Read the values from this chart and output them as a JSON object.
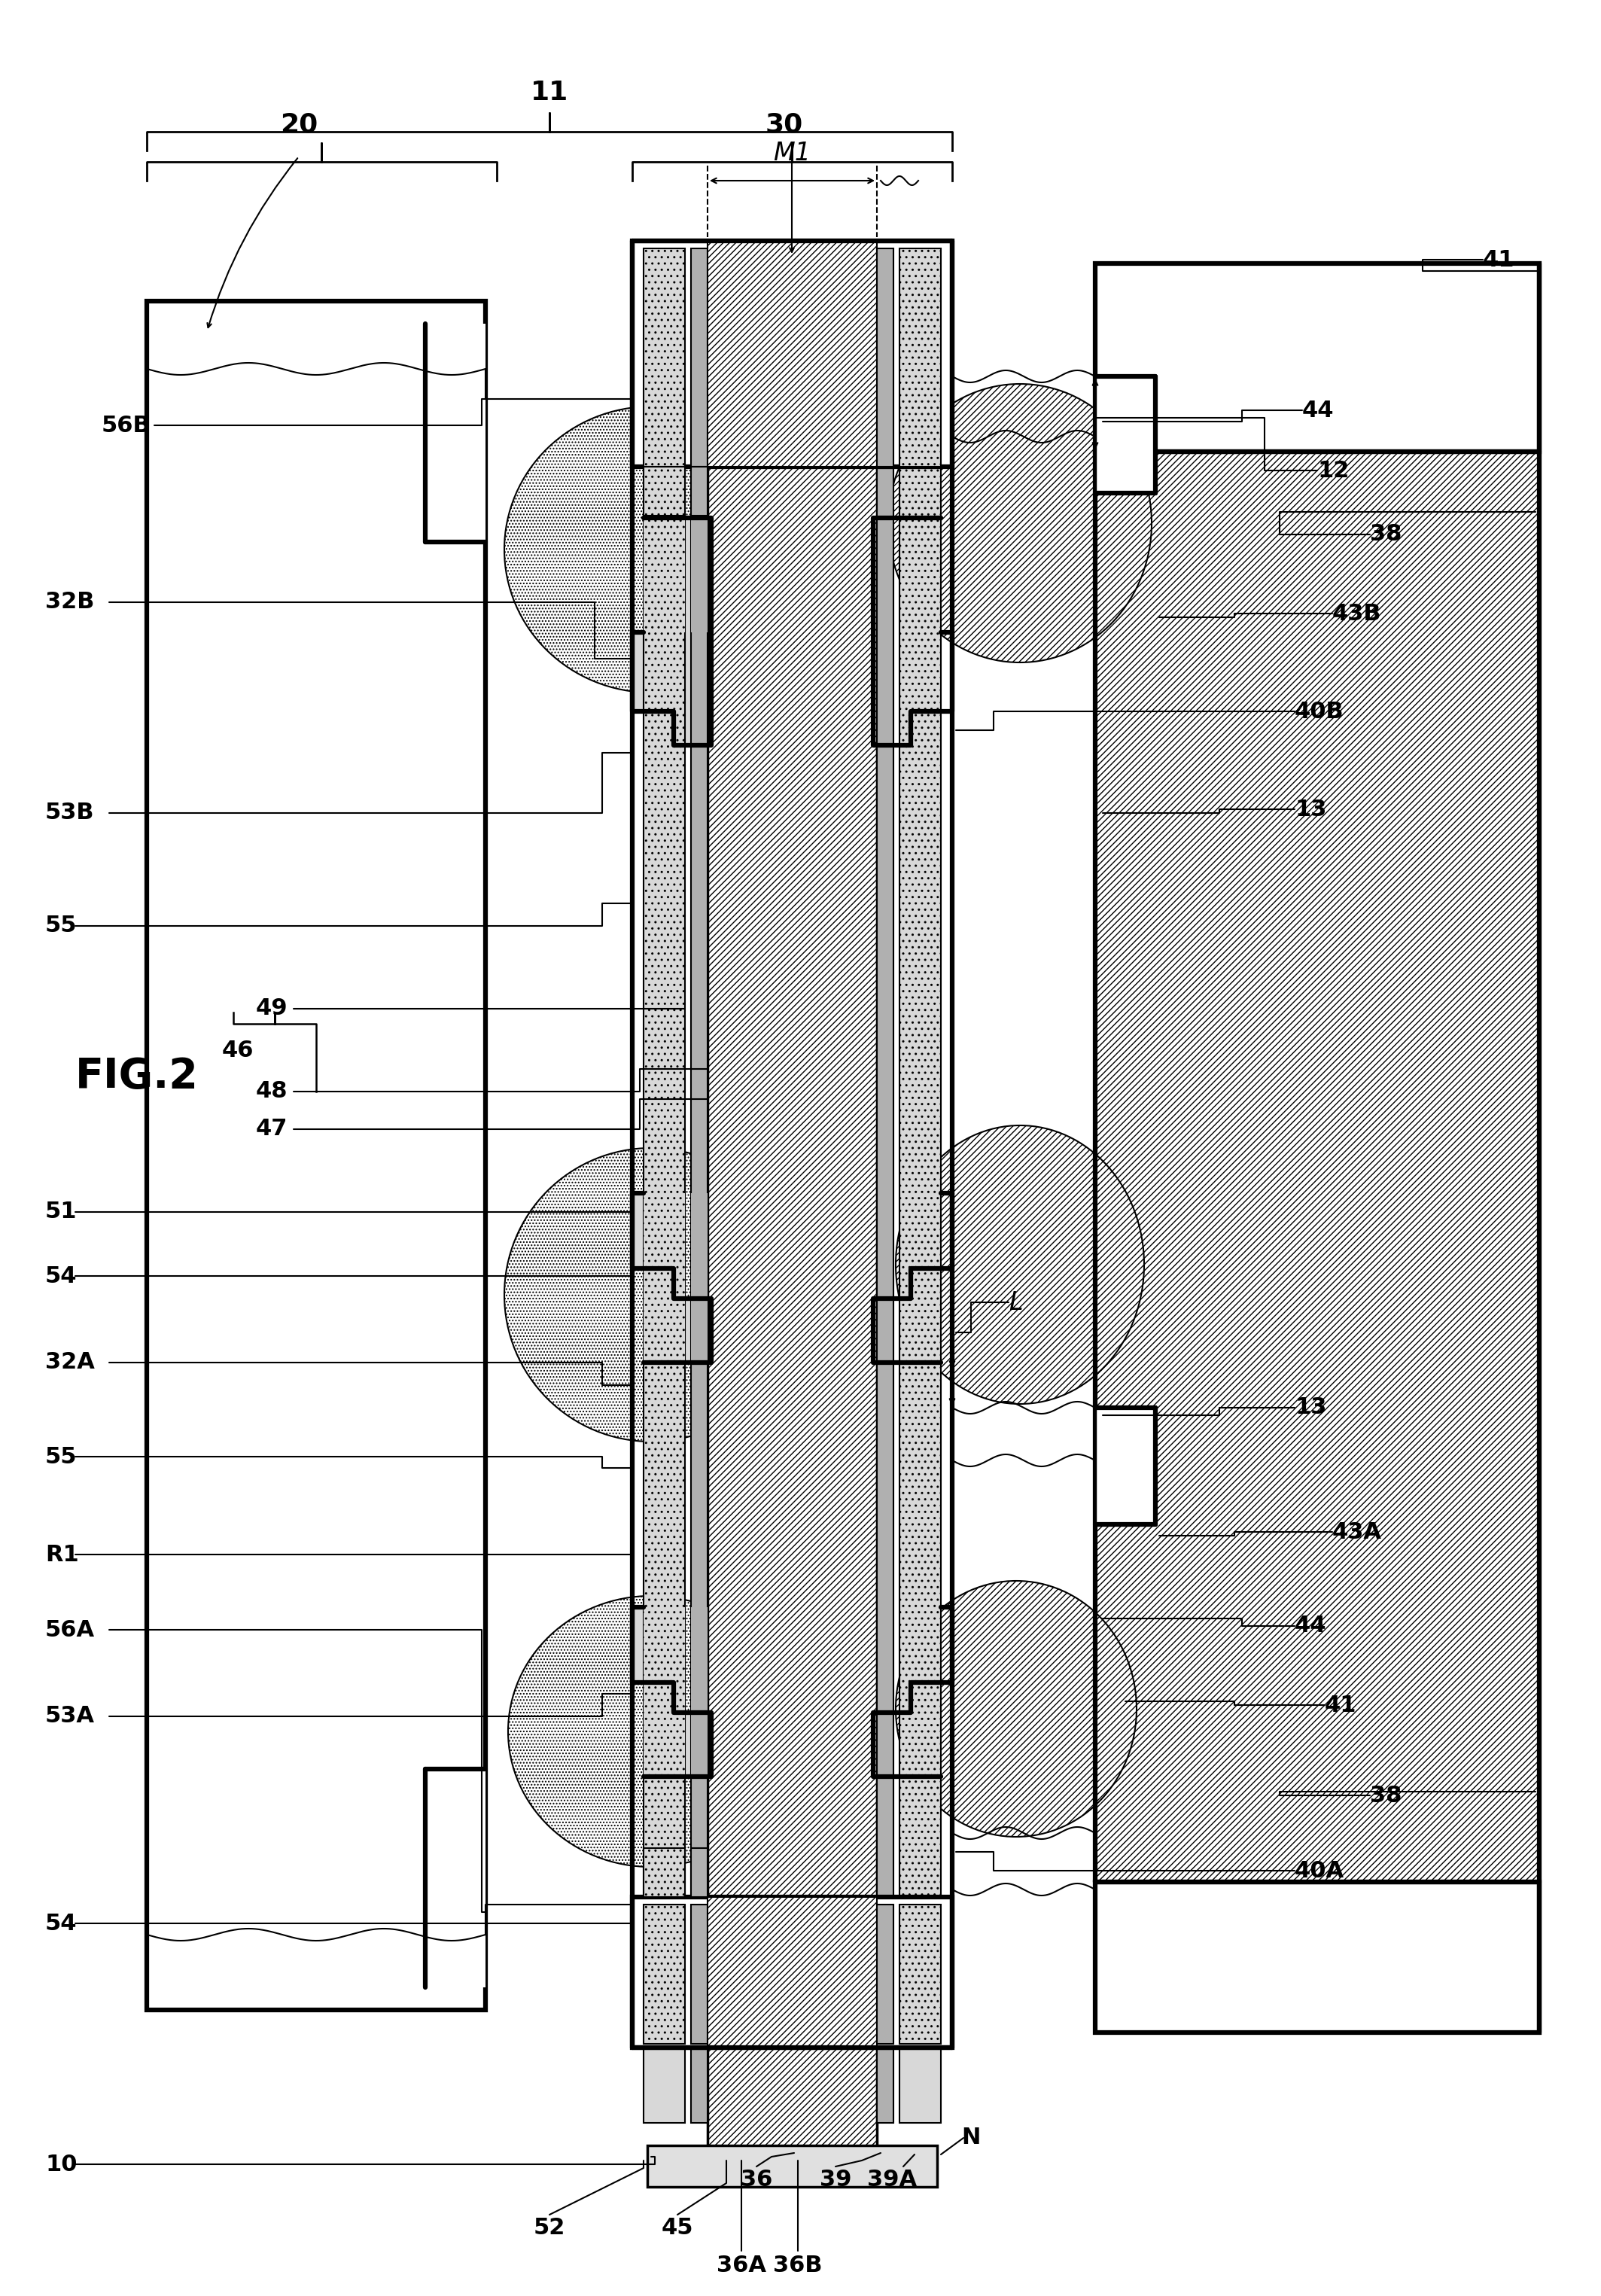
{
  "bg": "#ffffff",
  "fig_label": "FIG.2",
  "label_20": "20",
  "label_30": "30",
  "label_11": "11",
  "label_M1": "M1",
  "left_labels": [
    [
      "56B",
      60,
      565
    ],
    [
      "32B",
      60,
      800
    ],
    [
      "53B",
      60,
      1080
    ],
    [
      "55",
      60,
      1230
    ],
    [
      "49",
      270,
      1340
    ],
    [
      "46",
      230,
      1395
    ],
    [
      "48",
      270,
      1450
    ],
    [
      "47",
      270,
      1500
    ],
    [
      "51",
      60,
      1610
    ],
    [
      "54",
      60,
      1695
    ],
    [
      "32A",
      60,
      1810
    ],
    [
      "55",
      60,
      1935
    ],
    [
      "R1",
      60,
      2065
    ],
    [
      "56A",
      60,
      2165
    ],
    [
      "53A",
      60,
      2280
    ],
    [
      "54",
      60,
      2555
    ],
    [
      "10",
      60,
      2875
    ]
  ],
  "right_labels": [
    [
      "41",
      1970,
      345
    ],
    [
      "44",
      1730,
      545
    ],
    [
      "12",
      1750,
      625
    ],
    [
      "38",
      1820,
      710
    ],
    [
      "43B",
      1770,
      810
    ],
    [
      "40B",
      1720,
      940
    ],
    [
      "13",
      1720,
      1075
    ],
    [
      "L",
      1340,
      1730
    ],
    [
      "13",
      1720,
      1870
    ],
    [
      "43A",
      1770,
      2030
    ],
    [
      "44",
      1720,
      2160
    ],
    [
      "41",
      1760,
      2260
    ],
    [
      "38",
      1820,
      2380
    ],
    [
      "40A",
      1720,
      2480
    ]
  ],
  "bottom_labels": [
    [
      "52",
      730,
      2960
    ],
    [
      "45",
      900,
      2960
    ],
    [
      "36A",
      985,
      3005
    ],
    [
      "36B",
      1065,
      3005
    ],
    [
      "36",
      1005,
      2900
    ],
    [
      "39",
      1110,
      2895
    ],
    [
      "39A",
      1175,
      2895
    ],
    [
      "N",
      1290,
      2840
    ]
  ]
}
